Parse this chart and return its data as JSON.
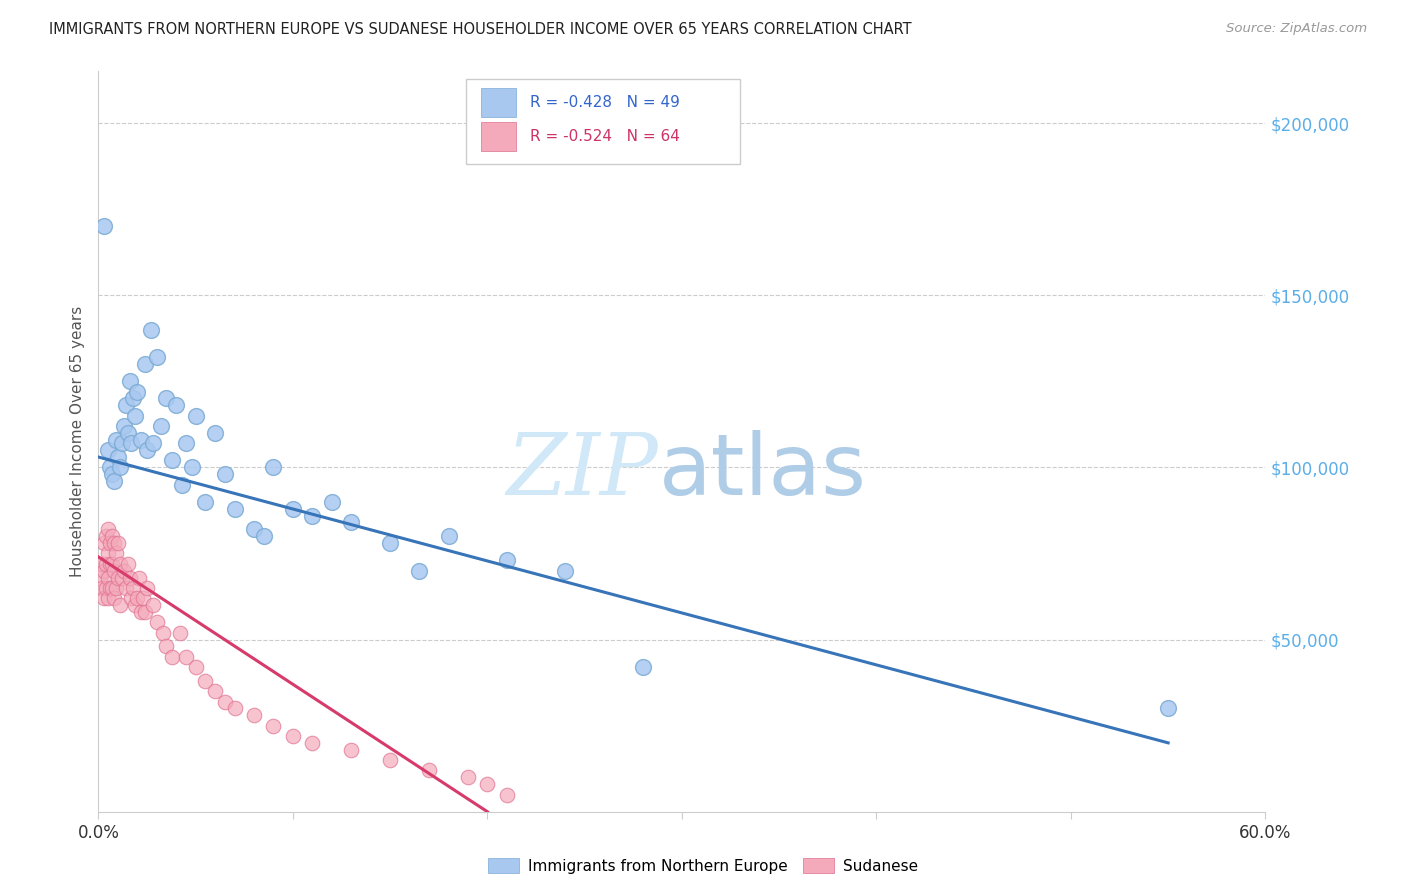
{
  "title": "IMMIGRANTS FROM NORTHERN EUROPE VS SUDANESE HOUSEHOLDER INCOME OVER 65 YEARS CORRELATION CHART",
  "source": "Source: ZipAtlas.com",
  "ylabel": "Householder Income Over 65 years",
  "xlim": [
    0.0,
    0.6
  ],
  "ylim": [
    0,
    215000
  ],
  "xticks": [
    0.0,
    0.1,
    0.2,
    0.3,
    0.4,
    0.5,
    0.6
  ],
  "xticklabels": [
    "0.0%",
    "",
    "",
    "",
    "",
    "",
    "60.0%"
  ],
  "yticks_right": [
    50000,
    100000,
    150000,
    200000
  ],
  "ytick_right_labels": [
    "$50,000",
    "$100,000",
    "$150,000",
    "$200,000"
  ],
  "blue_R": "-0.428",
  "blue_N": "49",
  "pink_R": "-0.524",
  "pink_N": "64",
  "blue_color": "#A8C8F0",
  "blue_edge_color": "#7BAAD4",
  "blue_line_color": "#3874B8",
  "pink_color": "#F4AABB",
  "pink_edge_color": "#E07090",
  "pink_line_color": "#D63B6B",
  "legend_label_blue": "Immigrants from Northern Europe",
  "legend_label_pink": "Sudanese",
  "blue_line_x0": 0.0,
  "blue_line_y0": 103000,
  "blue_line_x1": 0.55,
  "blue_line_y1": 20000,
  "pink_line_x0": 0.0,
  "pink_line_y0": 74000,
  "pink_line_x1": 0.2,
  "pink_line_y1": 0,
  "blue_scatter_x": [
    0.003,
    0.005,
    0.006,
    0.007,
    0.008,
    0.009,
    0.01,
    0.011,
    0.012,
    0.013,
    0.014,
    0.015,
    0.016,
    0.017,
    0.018,
    0.019,
    0.02,
    0.022,
    0.024,
    0.025,
    0.027,
    0.028,
    0.03,
    0.032,
    0.035,
    0.038,
    0.04,
    0.043,
    0.045,
    0.048,
    0.05,
    0.055,
    0.06,
    0.065,
    0.07,
    0.08,
    0.085,
    0.09,
    0.1,
    0.11,
    0.12,
    0.13,
    0.15,
    0.165,
    0.18,
    0.21,
    0.24,
    0.28,
    0.55
  ],
  "blue_scatter_y": [
    170000,
    105000,
    100000,
    98000,
    96000,
    108000,
    103000,
    100000,
    107000,
    112000,
    118000,
    110000,
    125000,
    107000,
    120000,
    115000,
    122000,
    108000,
    130000,
    105000,
    140000,
    107000,
    132000,
    112000,
    120000,
    102000,
    118000,
    95000,
    107000,
    100000,
    115000,
    90000,
    110000,
    98000,
    88000,
    82000,
    80000,
    100000,
    88000,
    86000,
    90000,
    84000,
    78000,
    70000,
    80000,
    73000,
    70000,
    42000,
    30000
  ],
  "pink_scatter_x": [
    0.001,
    0.002,
    0.002,
    0.003,
    0.003,
    0.003,
    0.004,
    0.004,
    0.004,
    0.005,
    0.005,
    0.005,
    0.005,
    0.006,
    0.006,
    0.006,
    0.007,
    0.007,
    0.007,
    0.008,
    0.008,
    0.008,
    0.009,
    0.009,
    0.01,
    0.01,
    0.011,
    0.011,
    0.012,
    0.013,
    0.014,
    0.015,
    0.016,
    0.017,
    0.018,
    0.019,
    0.02,
    0.021,
    0.022,
    0.023,
    0.024,
    0.025,
    0.028,
    0.03,
    0.033,
    0.035,
    0.038,
    0.042,
    0.045,
    0.05,
    0.055,
    0.06,
    0.065,
    0.07,
    0.08,
    0.09,
    0.1,
    0.11,
    0.13,
    0.15,
    0.17,
    0.19,
    0.2,
    0.21
  ],
  "pink_scatter_y": [
    68000,
    72000,
    65000,
    78000,
    70000,
    62000,
    80000,
    72000,
    65000,
    82000,
    75000,
    68000,
    62000,
    78000,
    72000,
    65000,
    80000,
    72000,
    65000,
    78000,
    70000,
    62000,
    75000,
    65000,
    78000,
    68000,
    72000,
    60000,
    68000,
    70000,
    65000,
    72000,
    68000,
    62000,
    65000,
    60000,
    62000,
    68000,
    58000,
    62000,
    58000,
    65000,
    60000,
    55000,
    52000,
    48000,
    45000,
    52000,
    45000,
    42000,
    38000,
    35000,
    32000,
    30000,
    28000,
    25000,
    22000,
    20000,
    18000,
    15000,
    12000,
    10000,
    8000,
    5000
  ]
}
